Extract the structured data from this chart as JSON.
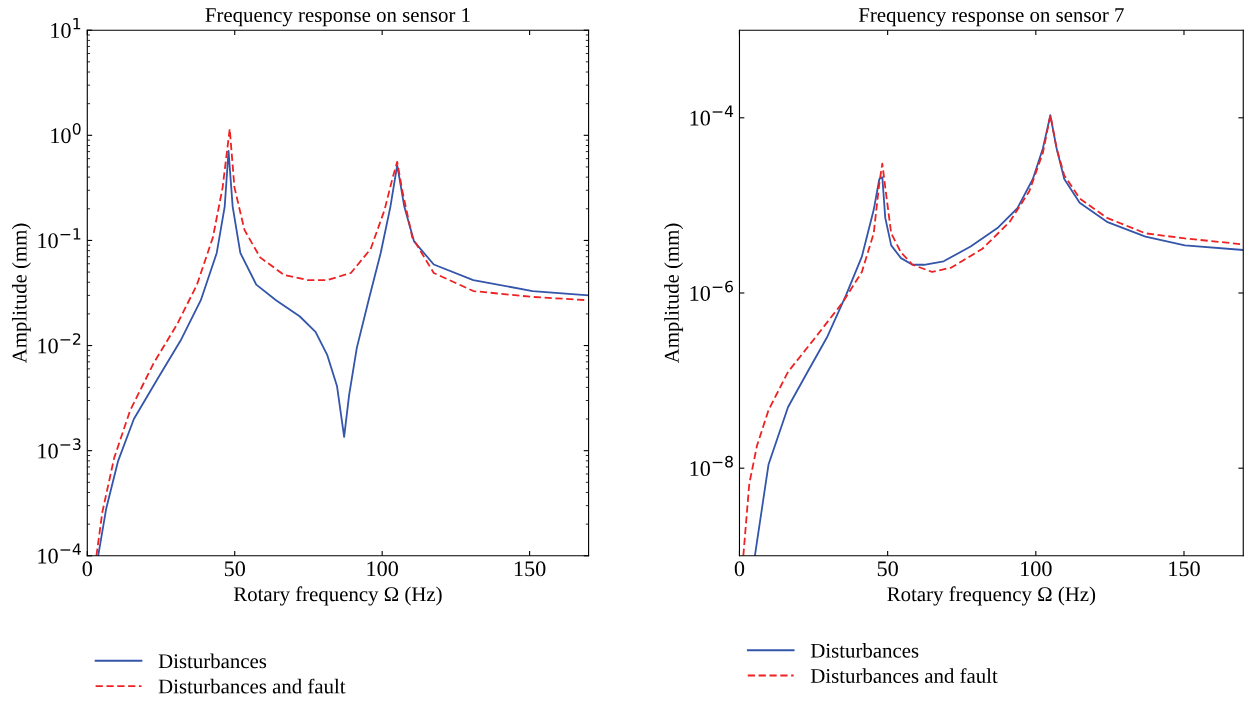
{
  "chart_data": [
    {
      "type": "line",
      "title": "Frequency response on sensor 1",
      "xlabel": "Rotary frequency Ω (Hz)",
      "ylabel": "Amplitude (mm)",
      "log": "y",
      "legend": "bottom",
      "grid": false,
      "xlim": [
        0,
        170
      ],
      "xticks": [
        0,
        50,
        100,
        150
      ],
      "ylim": [
        0.0001,
        10
      ],
      "yticks": [
        {
          "value": 0.0001,
          "label": "10$^{−4}$"
        },
        {
          "value": 0.001,
          "label": "10$^{−3}$"
        },
        {
          "value": 0.01,
          "label": "10$^{−2}$"
        },
        {
          "value": 0.1,
          "label": "10$^{−1}$"
        },
        {
          "value": 1,
          "label": "10$^{0}$"
        },
        {
          "value": 10,
          "label": "10$^{1}$"
        }
      ],
      "series": [
        {
          "name": "Disturbances",
          "color": "#3355aa",
          "line_style": "solid",
          "x": [
            3.7,
            6.4,
            10.4,
            15.8,
            23.8,
            31.9,
            38.5,
            43.9,
            46.6,
            47.9,
            49.3,
            51.9,
            57.3,
            64,
            72,
            77.4,
            81.4,
            84.7,
            87.1,
            88.8,
            91.4,
            95.4,
            99.5,
            102.8,
            105.1,
            107.5,
            110.8,
            117.5,
            130.9,
            151,
            169.7
          ],
          "values": [
            0.0001,
            0.00028,
            0.00079,
            0.002,
            0.0048,
            0.0115,
            0.027,
            0.076,
            0.21,
            0.71,
            0.21,
            0.076,
            0.038,
            0.027,
            0.019,
            0.0135,
            0.0081,
            0.0041,
            0.00135,
            0.0034,
            0.0095,
            0.027,
            0.076,
            0.21,
            0.52,
            0.21,
            0.098,
            0.059,
            0.042,
            0.033,
            0.03
          ]
        },
        {
          "name": "Disturbances and fault",
          "color": "#ee2222",
          "line_style": "dashed",
          "x": [
            3.1,
            5.1,
            9.1,
            14.5,
            22.5,
            30.5,
            37.2,
            42.6,
            45.9,
            48.3,
            49.9,
            53.3,
            58.6,
            66.7,
            74.7,
            81.4,
            89.4,
            96.1,
            100.8,
            103.5,
            105.1,
            106.8,
            110.2,
            117.5,
            130.9,
            151,
            169.7
          ],
          "values": [
            0.0001,
            0.00026,
            0.00085,
            0.0024,
            0.0068,
            0.016,
            0.038,
            0.107,
            0.32,
            1.15,
            0.32,
            0.126,
            0.069,
            0.047,
            0.042,
            0.042,
            0.049,
            0.083,
            0.195,
            0.39,
            0.56,
            0.3,
            0.107,
            0.049,
            0.033,
            0.029,
            0.027
          ]
        }
      ]
    },
    {
      "type": "line",
      "title": "Frequency response on sensor 7",
      "xlabel": "Rotary frequency Ω (Hz)",
      "ylabel": "Amplitude (mm)",
      "log": "y",
      "legend": "bottom",
      "grid": false,
      "xlim": [
        0,
        170
      ],
      "xticks": [
        0,
        50,
        100,
        150
      ],
      "ylim": [
        1e-09,
        0.001
      ],
      "yticks": [
        {
          "value": 1e-08,
          "label": "10$^{−8}$"
        },
        {
          "value": 1e-06,
          "label": "10$^{−6}$"
        },
        {
          "value": 0.0001,
          "label": "10$^{−4}$"
        }
      ],
      "series": [
        {
          "name": "Disturbances",
          "color": "#3355aa",
          "line_style": "solid",
          "x": [
            5.2,
            9.8,
            16.4,
            23,
            29.5,
            36,
            41.3,
            45.3,
            47.2,
            48.2,
            49.2,
            51.2,
            54.5,
            58.4,
            62.3,
            68.9,
            78,
            87.3,
            93.8,
            99,
            102.4,
            104.9,
            107,
            109.6,
            114.8,
            124,
            137,
            150.3,
            169.7
          ],
          "values": [
            1e-09,
            1.1e-08,
            5e-08,
            1.26e-07,
            3.1e-07,
            9.5e-07,
            2.6e-06,
            8.9e-06,
            2e-05,
            2.1e-05,
            7.2e-06,
            3.5e-06,
            2.5e-06,
            2.1e-06,
            2.1e-06,
            2.3e-06,
            3.4e-06,
            5.6e-06,
            9.3e-06,
            2e-05,
            4.5e-05,
            0.000107,
            4.5e-05,
            2e-05,
            1.07e-05,
            6.5e-06,
            4.4e-06,
            3.5e-06,
            3.1e-06
          ]
        },
        {
          "name": "Disturbances and fault",
          "color": "#ee2222",
          "line_style": "dashed",
          "x": [
            1.3,
            3.3,
            5.9,
            9.8,
            16.4,
            25.6,
            34.8,
            41.3,
            45.3,
            47.2,
            48.2,
            49.2,
            51.2,
            54.5,
            58.4,
            65,
            71.5,
            82,
            91.2,
            97.8,
            102.4,
            104.9,
            107,
            109.6,
            114.8,
            124,
            137,
            150.3,
            169.7
          ],
          "values": [
            1e-09,
            6.6e-09,
            1.8e-08,
            4.6e-08,
            1.26e-07,
            3.1e-07,
            7.8e-07,
            1.74e-06,
            4.8e-06,
            1.8e-05,
            3e-05,
            1.6e-05,
            4.8e-06,
            2.9e-06,
            2.1e-06,
            1.74e-06,
            1.95e-06,
            3.2e-06,
            6.5e-06,
            1.45e-05,
            4e-05,
            0.000107,
            4.5e-05,
            2.2e-05,
            1.2e-05,
            7.2e-06,
            4.8e-06,
            4.2e-06,
            3.6e-06
          ]
        }
      ]
    }
  ]
}
